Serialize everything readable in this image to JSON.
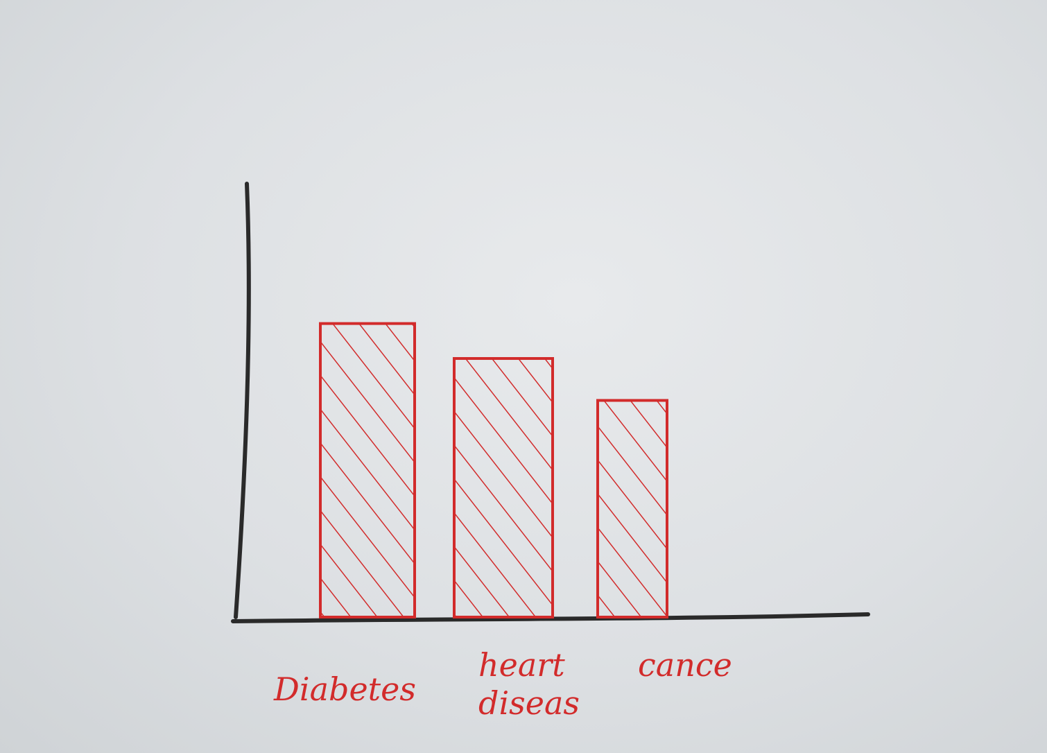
{
  "chart_data": {
    "type": "bar",
    "categories": [
      "Diabetes",
      "heart diseas",
      "cance"
    ],
    "category_lines": [
      [
        "Diabetes"
      ],
      [
        "heart",
        "diseas"
      ],
      [
        "cance"
      ]
    ],
    "values": [
      42,
      37,
      31
    ],
    "ylim": [
      0,
      62
    ],
    "grid": false,
    "bar_color": "#d22b2b",
    "axis_color": "#2a2a2a",
    "fill_pattern": "diagonal-hatch"
  }
}
